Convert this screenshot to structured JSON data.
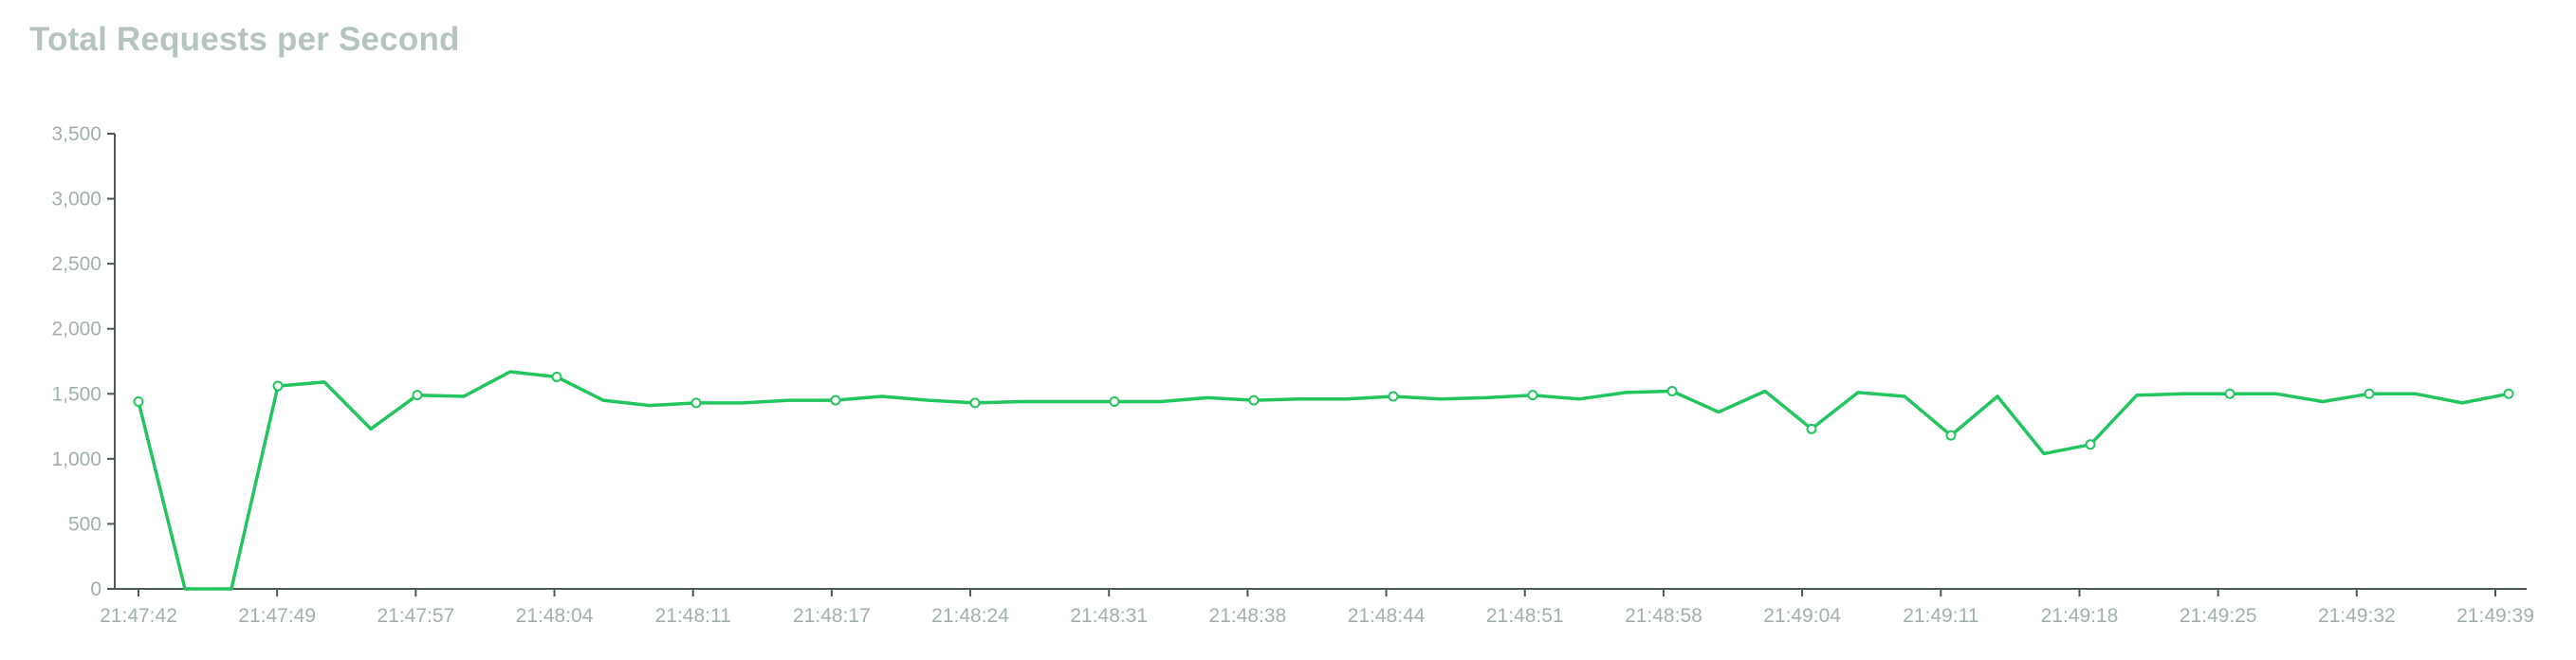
{
  "chart_data": {
    "type": "line",
    "title": "Total Requests per Second",
    "xlabel": "",
    "ylabel": "",
    "ylim": [
      0,
      3500
    ],
    "yticks": [
      0,
      500,
      1000,
      1500,
      2000,
      2500,
      3000,
      3500
    ],
    "ytick_labels": [
      "0",
      "500",
      "1,000",
      "1,500",
      "2,000",
      "2,500",
      "3,000",
      "3,500"
    ],
    "xtick_labels": [
      "21:47:42",
      "21:47:49",
      "21:47:57",
      "21:48:04",
      "21:48:11",
      "21:48:17",
      "21:48:24",
      "21:48:31",
      "21:48:38",
      "21:48:44",
      "21:48:51",
      "21:48:58",
      "21:49:04",
      "21:49:11",
      "21:49:18",
      "21:49:25",
      "21:49:32",
      "21:49:39"
    ],
    "grid": false,
    "line_color": "#22c55e",
    "marker_every": 3,
    "series": [
      {
        "values": [
          1440,
          0,
          0,
          1560,
          1590,
          1230,
          1490,
          1480,
          1670,
          1630,
          1450,
          1410,
          1430,
          1430,
          1450,
          1450,
          1480,
          1450,
          1430,
          1440,
          1440,
          1440,
          1440,
          1470,
          1450,
          1460,
          1460,
          1480,
          1460,
          1470,
          1490,
          1460,
          1510,
          1520,
          1360,
          1520,
          1230,
          1510,
          1480,
          1180,
          1480,
          1040,
          1110,
          1490,
          1500,
          1500,
          1500,
          1440,
          1500,
          1500,
          1430,
          1500
        ]
      }
    ]
  }
}
